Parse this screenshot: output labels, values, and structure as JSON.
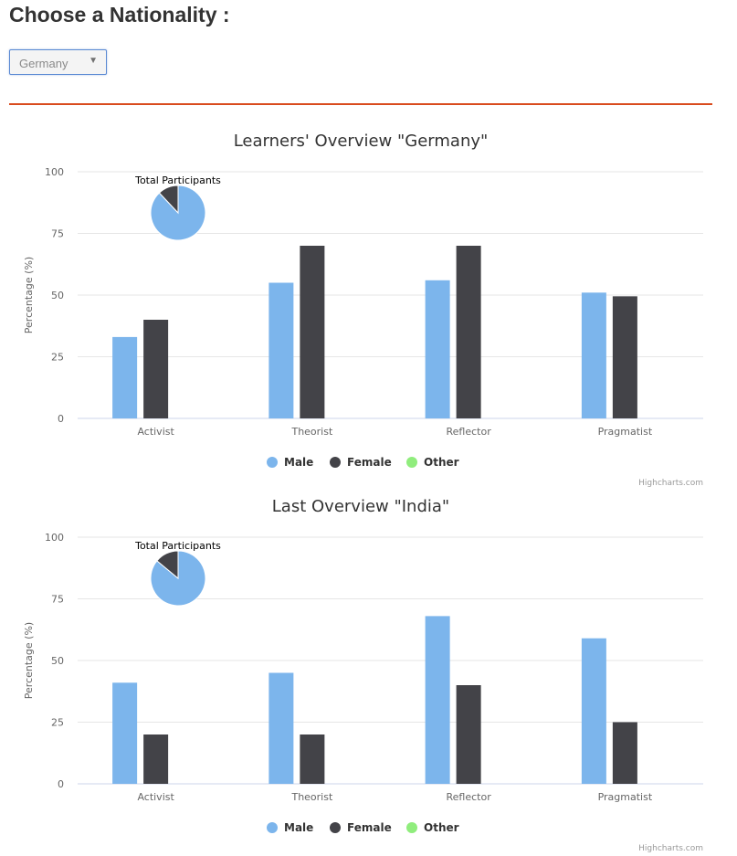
{
  "page": {
    "heading": "Choose a Nationality :",
    "nationality_select": {
      "value": "Germany",
      "arrow": "▼"
    }
  },
  "colors": {
    "male": "#7cb5ec",
    "female": "#434348",
    "other": "#90ed7d",
    "divider": "#d94b1e"
  },
  "chart_data": [
    {
      "type": "bar",
      "title": "Learners' Overview \"Germany\"",
      "ylabel": "Percentage (%)",
      "xlabel": "",
      "ylim": [
        0,
        100
      ],
      "yticks": [
        "0",
        "25",
        "50",
        "75",
        "100"
      ],
      "categories": [
        "Activist",
        "Theorist",
        "Reflector",
        "Pragmatist"
      ],
      "series": [
        {
          "name": "Male",
          "color": "#7cb5ec",
          "values": [
            33,
            55,
            56,
            51
          ]
        },
        {
          "name": "Female",
          "color": "#434348",
          "values": [
            40,
            70,
            70,
            49.5
          ]
        },
        {
          "name": "Other",
          "color": "#90ed7d",
          "values": [
            0,
            0,
            0,
            0
          ]
        }
      ],
      "grid": true,
      "legend": "bottom-center",
      "inset_pie": {
        "title": "Total Participants",
        "slices": [
          {
            "name": "Male",
            "value": 88,
            "color": "#7cb5ec"
          },
          {
            "name": "Female",
            "value": 12,
            "color": "#434348"
          }
        ]
      },
      "credits": "Highcharts.com"
    },
    {
      "type": "bar",
      "title": "Last Overview \"India\"",
      "ylabel": "Percentage (%)",
      "xlabel": "",
      "ylim": [
        0,
        100
      ],
      "yticks": [
        "0",
        "25",
        "50",
        "75",
        "100"
      ],
      "categories": [
        "Activist",
        "Theorist",
        "Reflector",
        "Pragmatist"
      ],
      "series": [
        {
          "name": "Male",
          "color": "#7cb5ec",
          "values": [
            41,
            45,
            68,
            59
          ]
        },
        {
          "name": "Female",
          "color": "#434348",
          "values": [
            20,
            20,
            40,
            25
          ]
        },
        {
          "name": "Other",
          "color": "#90ed7d",
          "values": [
            0,
            0,
            0,
            0
          ]
        }
      ],
      "grid": true,
      "legend": "bottom-center",
      "inset_pie": {
        "title": "Total Participants",
        "slices": [
          {
            "name": "Male",
            "value": 86,
            "color": "#7cb5ec"
          },
          {
            "name": "Female",
            "value": 14,
            "color": "#434348"
          }
        ]
      },
      "credits": "Highcharts.com"
    }
  ]
}
